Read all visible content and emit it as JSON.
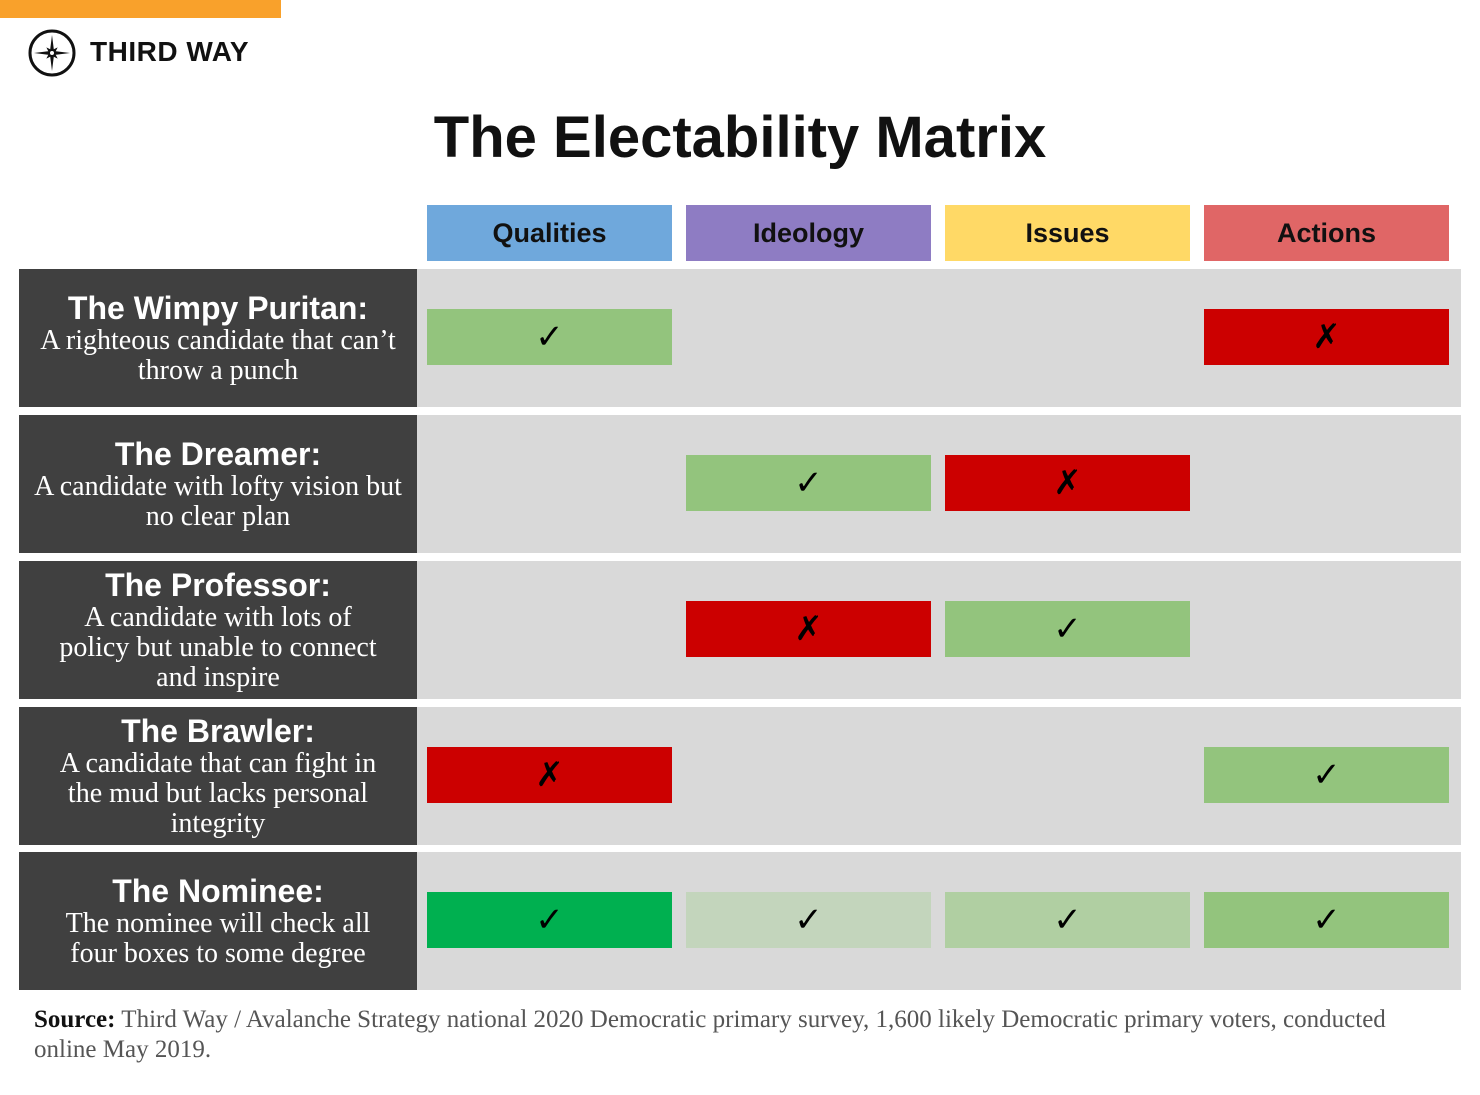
{
  "brand": {
    "name": "THIRD WAY",
    "logo_icon": "compass-star-icon",
    "accent_color": "#f9a12b"
  },
  "title": "The Electability Matrix",
  "columns": [
    {
      "label": "Qualities",
      "color": "#6fa8dc"
    },
    {
      "label": "Ideology",
      "color": "#8e7cc3"
    },
    {
      "label": "Issues",
      "color": "#ffd966"
    },
    {
      "label": "Actions",
      "color": "#e06666"
    }
  ],
  "marks": {
    "check": "✓",
    "cross": "✗"
  },
  "rows": [
    {
      "name": "The Wimpy Puritan:",
      "desc": "A righteous candidate that can’t throw a punch",
      "cells": [
        {
          "mark": "check",
          "color": "#93c47d"
        },
        null,
        null,
        {
          "mark": "cross",
          "color": "#cc0000"
        }
      ]
    },
    {
      "name": "The Dreamer:",
      "desc": "A candidate with lofty vision but no clear plan",
      "cells": [
        null,
        {
          "mark": "check",
          "color": "#93c47d"
        },
        {
          "mark": "cross",
          "color": "#cc0000"
        },
        null
      ]
    },
    {
      "name": "The Professor:",
      "desc": "A candidate with lots of policy but unable to connect and inspire",
      "cells": [
        null,
        {
          "mark": "cross",
          "color": "#cc0000"
        },
        {
          "mark": "check",
          "color": "#93c47d"
        },
        null
      ]
    },
    {
      "name": "The Brawler:",
      "desc": "A candidate that can fight in the mud but lacks personal integrity",
      "cells": [
        {
          "mark": "cross",
          "color": "#cc0000"
        },
        null,
        null,
        {
          "mark": "check",
          "color": "#93c47d"
        }
      ]
    },
    {
      "name": "The Nominee:",
      "desc": "The nominee will check all four boxes to some degree",
      "cells": [
        {
          "mark": "check",
          "color": "#00b050"
        },
        {
          "mark": "check",
          "color": "#c3d5bc"
        },
        {
          "mark": "check",
          "color": "#b0cfa2"
        },
        {
          "mark": "check",
          "color": "#93c47d"
        }
      ]
    }
  ],
  "source": {
    "label": "Source:",
    "text": "Third Way / Avalanche Strategy national 2020 Democratic primary survey, 1,600 likely Democratic primary voters, conducted online May 2019."
  }
}
